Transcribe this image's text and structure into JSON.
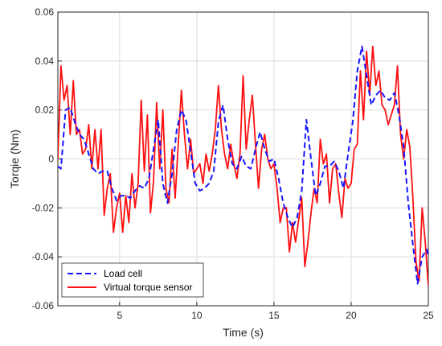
{
  "chart_data": {
    "type": "line",
    "title": "",
    "xlabel": "Time (s)",
    "ylabel": "Torqie (Nm)",
    "xlim": [
      1,
      25
    ],
    "ylim": [
      -0.06,
      0.06
    ],
    "xticks": [
      5,
      10,
      15,
      20,
      25
    ],
    "xtick_labels": [
      "5",
      "10",
      "15",
      "20",
      "25"
    ],
    "yticks": [
      -0.06,
      -0.04,
      -0.02,
      0,
      0.02,
      0.04,
      0.06
    ],
    "ytick_labels": [
      "-0.06",
      "-0.04",
      "-0.02",
      "0",
      "0.02",
      "0.04",
      "0.06"
    ],
    "grid": true,
    "legend_position": "bottom-left",
    "series": [
      {
        "name": "Load cell",
        "color": "#1515ff",
        "style": "dashed",
        "x": [
          1.0,
          1.2,
          1.5,
          1.8,
          2.1,
          2.4,
          2.7,
          3.0,
          3.3,
          3.6,
          3.9,
          4.2,
          4.5,
          4.8,
          5.1,
          5.4,
          5.7,
          6.0,
          6.3,
          6.6,
          6.9,
          7.2,
          7.5,
          7.8,
          8.1,
          8.4,
          8.7,
          9.0,
          9.3,
          9.6,
          9.9,
          10.2,
          10.5,
          10.8,
          11.1,
          11.4,
          11.7,
          12.0,
          12.3,
          12.6,
          12.9,
          13.2,
          13.5,
          13.8,
          14.1,
          14.4,
          14.7,
          15.0,
          15.3,
          15.6,
          15.9,
          16.2,
          16.5,
          16.8,
          17.1,
          17.4,
          17.7,
          18.0,
          18.3,
          18.6,
          18.9,
          19.2,
          19.5,
          19.8,
          20.1,
          20.4,
          20.7,
          21.0,
          21.3,
          21.6,
          21.9,
          22.2,
          22.5,
          22.8,
          23.1,
          23.4,
          23.7,
          24.0,
          24.3,
          24.6,
          24.9,
          25.0
        ],
        "y": [
          -0.003,
          -0.004,
          0.02,
          0.021,
          0.015,
          0.01,
          0.008,
          0.002,
          -0.004,
          -0.006,
          -0.005,
          -0.005,
          -0.012,
          -0.017,
          -0.015,
          -0.015,
          -0.016,
          -0.013,
          -0.011,
          -0.012,
          -0.008,
          0.004,
          0.016,
          -0.01,
          -0.018,
          -0.006,
          0.012,
          0.02,
          0.016,
          0.003,
          -0.01,
          -0.013,
          -0.012,
          -0.01,
          -0.005,
          0.015,
          0.022,
          0.008,
          -0.002,
          -0.004,
          0.001,
          -0.003,
          -0.004,
          0.004,
          0.011,
          0.004,
          -0.001,
          0.0,
          -0.008,
          -0.018,
          -0.024,
          -0.028,
          -0.024,
          -0.013,
          0.016,
          0.0,
          -0.015,
          -0.01,
          -0.003,
          -0.003,
          -0.001,
          -0.005,
          -0.012,
          0.002,
          0.015,
          0.036,
          0.046,
          0.034,
          0.022,
          0.026,
          0.028,
          0.025,
          0.024,
          0.027,
          0.018,
          0.005,
          -0.018,
          -0.035,
          -0.051,
          -0.04,
          -0.037,
          -0.04
        ]
      },
      {
        "name": "Virtual torque sensor",
        "color": "#ff1010",
        "style": "solid",
        "x": [
          1.0,
          1.2,
          1.4,
          1.6,
          1.8,
          2.0,
          2.2,
          2.4,
          2.6,
          2.8,
          3.0,
          3.2,
          3.4,
          3.6,
          3.8,
          4.0,
          4.2,
          4.4,
          4.6,
          4.8,
          5.0,
          5.2,
          5.4,
          5.6,
          5.8,
          6.0,
          6.2,
          6.4,
          6.6,
          6.8,
          7.0,
          7.2,
          7.4,
          7.6,
          7.8,
          8.0,
          8.2,
          8.4,
          8.6,
          8.8,
          9.0,
          9.2,
          9.4,
          9.6,
          9.8,
          10.0,
          10.2,
          10.4,
          10.6,
          10.8,
          11.0,
          11.2,
          11.4,
          11.6,
          11.8,
          12.0,
          12.2,
          12.4,
          12.6,
          12.8,
          13.0,
          13.2,
          13.4,
          13.6,
          13.8,
          14.0,
          14.2,
          14.4,
          14.6,
          14.8,
          15.0,
          15.2,
          15.4,
          15.6,
          15.8,
          16.0,
          16.2,
          16.4,
          16.6,
          16.8,
          17.0,
          17.2,
          17.4,
          17.6,
          17.8,
          18.0,
          18.2,
          18.4,
          18.6,
          18.8,
          19.0,
          19.2,
          19.4,
          19.6,
          19.8,
          20.0,
          20.2,
          20.4,
          20.6,
          20.8,
          21.0,
          21.2,
          21.4,
          21.6,
          21.8,
          22.0,
          22.2,
          22.4,
          22.6,
          22.8,
          23.0,
          23.2,
          23.4,
          23.6,
          23.8,
          24.0,
          24.2,
          24.4,
          24.6,
          24.8,
          25.0
        ],
        "y": [
          0.0,
          0.038,
          0.024,
          0.03,
          0.01,
          0.032,
          0.01,
          0.012,
          0.002,
          0.004,
          0.014,
          -0.004,
          0.012,
          -0.004,
          0.012,
          -0.023,
          -0.012,
          -0.006,
          -0.03,
          -0.02,
          -0.014,
          -0.03,
          -0.015,
          -0.026,
          -0.006,
          -0.02,
          -0.01,
          0.024,
          -0.005,
          0.018,
          -0.022,
          -0.009,
          0.023,
          -0.004,
          0.02,
          -0.012,
          -0.018,
          0.004,
          -0.016,
          0.006,
          0.028,
          0.01,
          -0.004,
          0.008,
          -0.006,
          -0.004,
          -0.002,
          -0.01,
          0.002,
          -0.005,
          0.002,
          0.012,
          0.03,
          0.012,
          0.002,
          -0.004,
          0.006,
          -0.002,
          -0.008,
          0.002,
          0.034,
          0.004,
          0.016,
          0.026,
          0.006,
          -0.012,
          0.004,
          0.01,
          0.0,
          -0.004,
          -0.002,
          -0.012,
          -0.026,
          -0.02,
          -0.02,
          -0.038,
          -0.026,
          -0.034,
          -0.025,
          -0.016,
          -0.044,
          -0.034,
          -0.022,
          -0.012,
          -0.018,
          0.008,
          -0.002,
          0.002,
          -0.018,
          -0.004,
          -0.002,
          -0.014,
          -0.024,
          -0.008,
          -0.012,
          -0.01,
          0.004,
          0.006,
          0.036,
          0.016,
          0.044,
          0.026,
          0.046,
          0.03,
          0.036,
          0.022,
          0.02,
          0.014,
          0.018,
          0.022,
          0.038,
          0.01,
          0.0,
          0.012,
          0.005,
          -0.016,
          -0.042,
          -0.05,
          -0.02,
          -0.034,
          -0.052
        ]
      }
    ]
  }
}
